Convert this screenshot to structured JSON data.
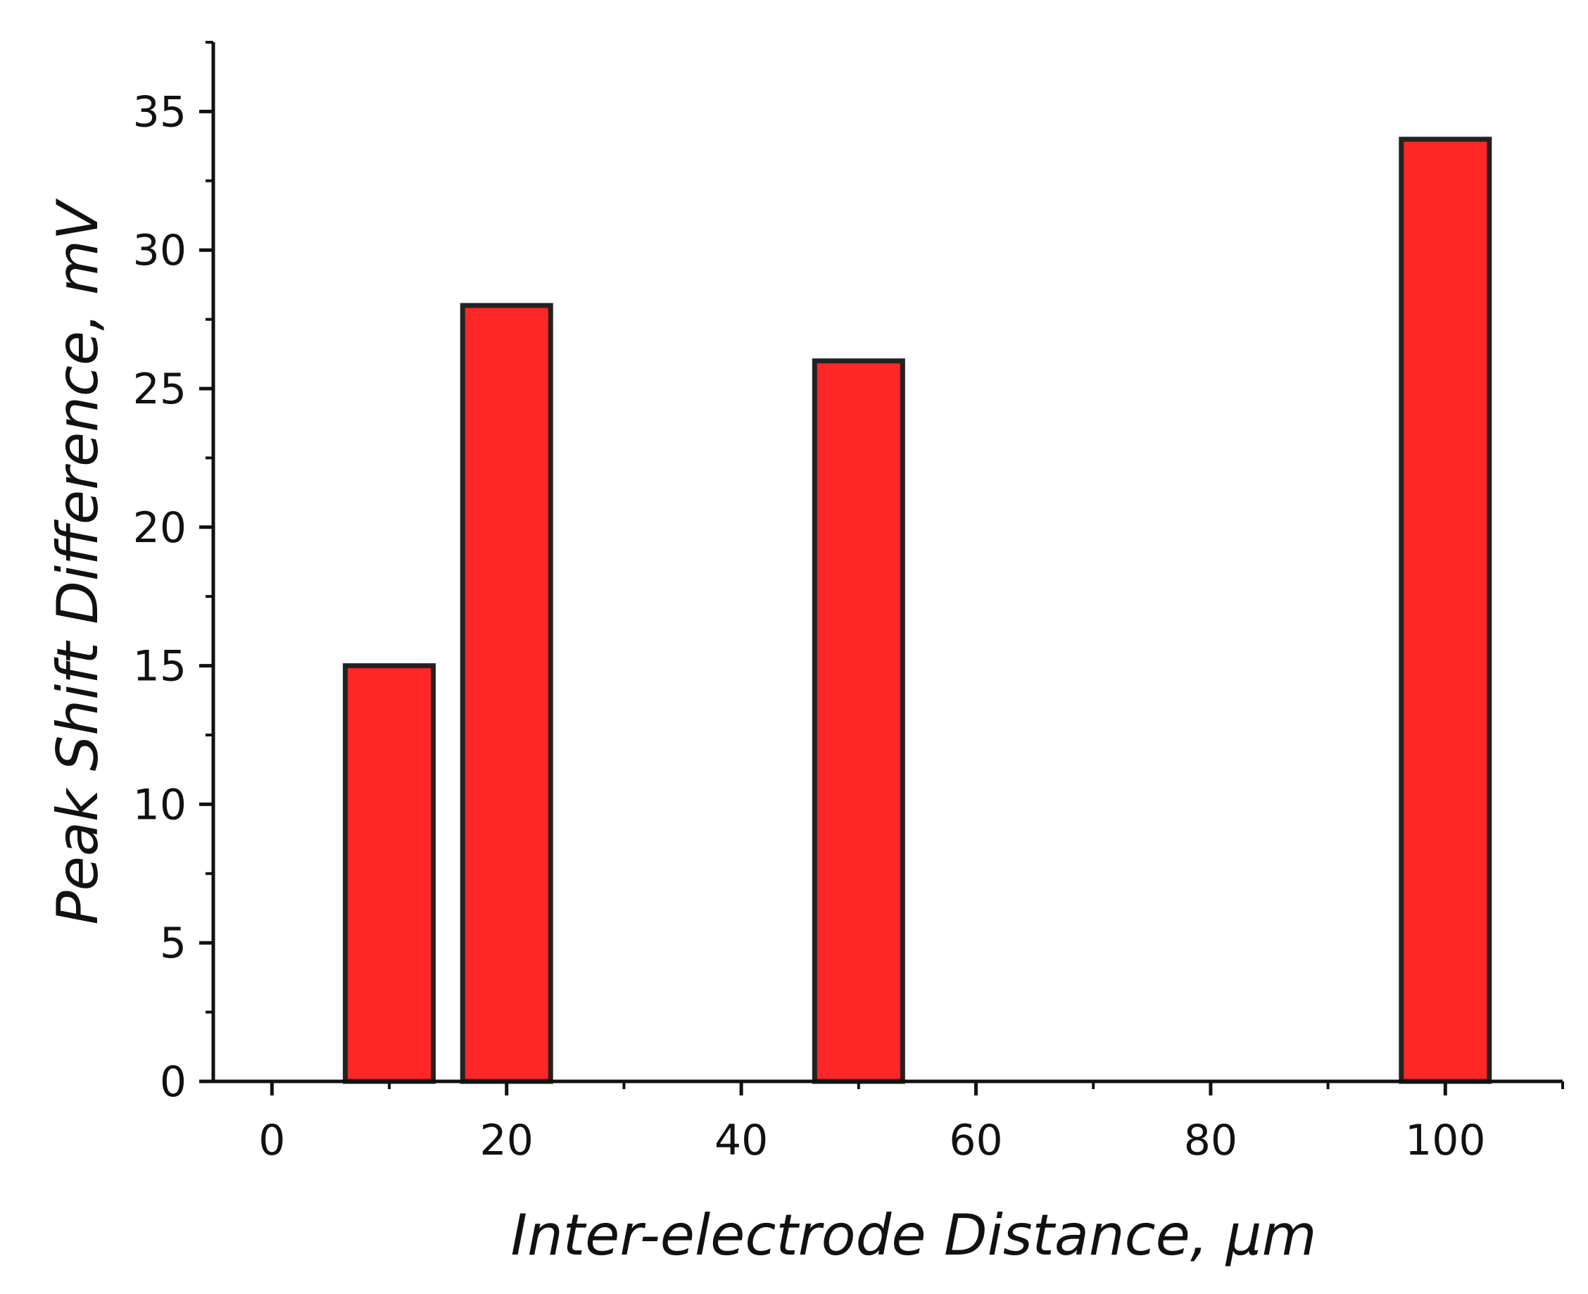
{
  "chart_data": {
    "type": "bar",
    "x": [
      10,
      20,
      50,
      100
    ],
    "values": [
      15,
      28,
      26,
      34
    ],
    "xlabel": "Inter-electrode Distance, µm",
    "ylabel": "Peak Shift Difference, mV",
    "xlim": [
      -5,
      110
    ],
    "ylim": [
      0,
      37.5
    ],
    "x_ticks": [
      "0",
      "20",
      "40",
      "60",
      "80",
      "100"
    ],
    "y_ticks": [
      "0",
      "5",
      "10",
      "15",
      "20",
      "25",
      "30",
      "35"
    ],
    "bar_width": 7.5,
    "grid": false,
    "legend": "none"
  },
  "colors": {
    "bar_fill": "#ff2626",
    "bar_edge": "#222222",
    "axis": "#111111"
  }
}
